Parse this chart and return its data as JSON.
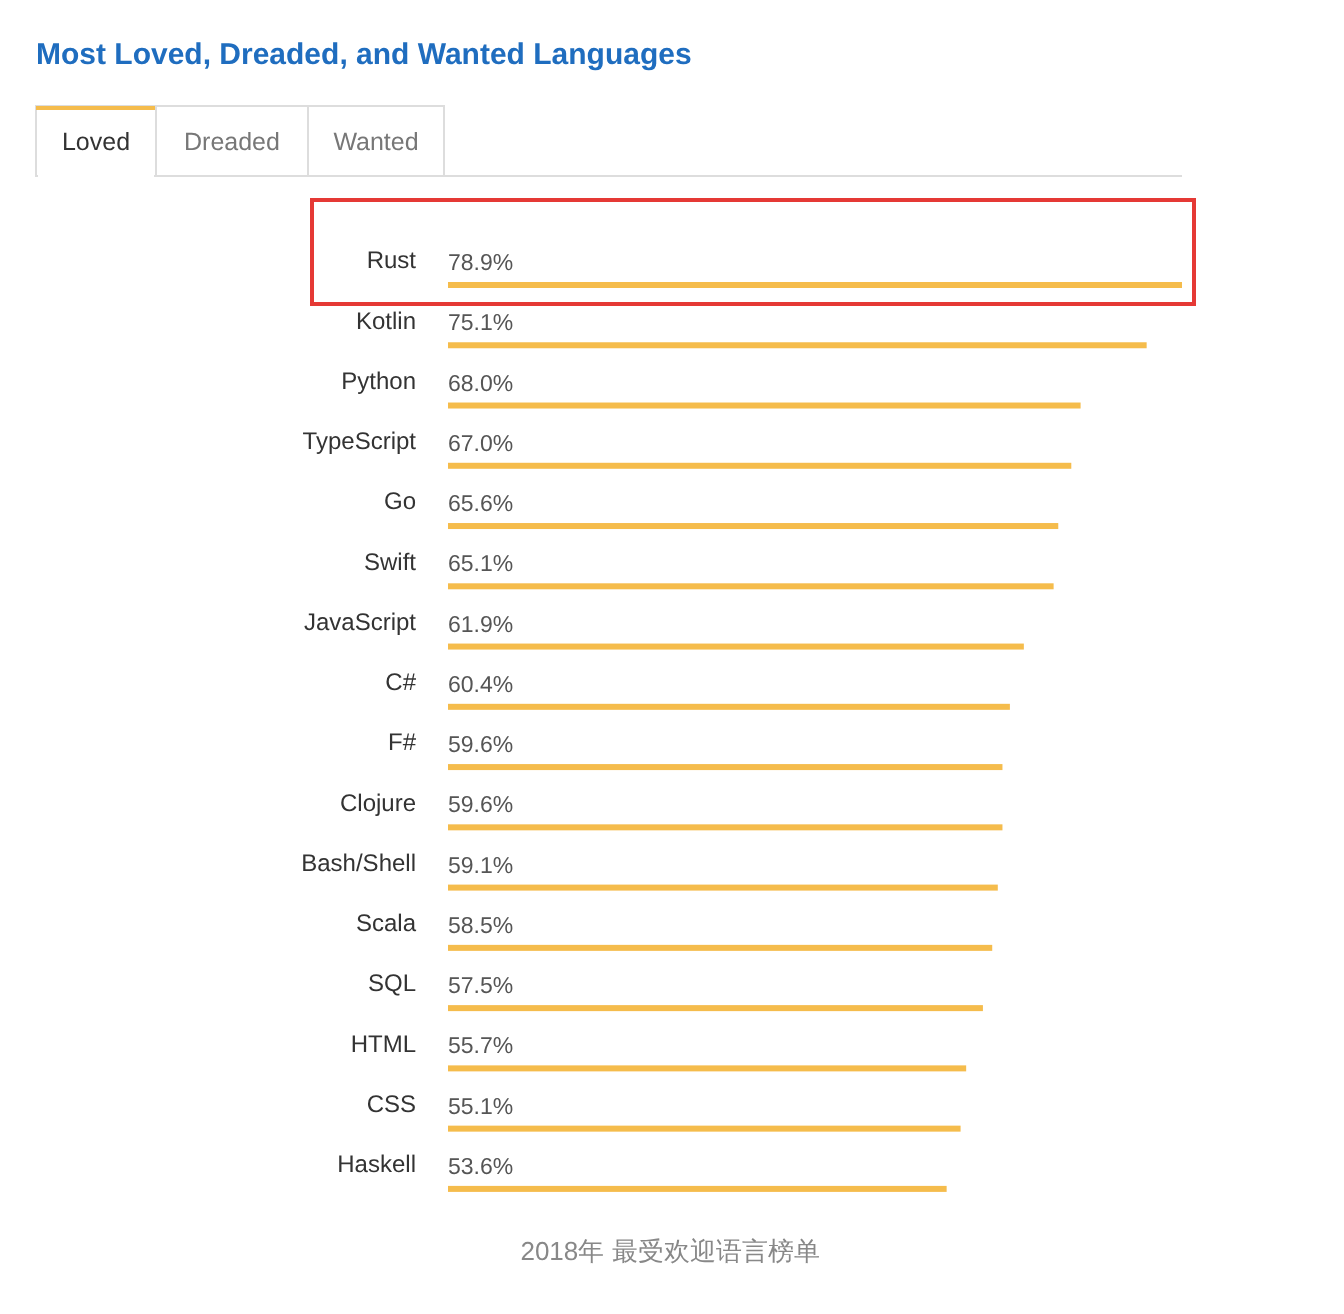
{
  "chart_data": {
    "type": "bar",
    "orientation": "horizontal",
    "title": "Most Loved, Dreaded, and Wanted Languages",
    "categories": [
      "Rust",
      "Kotlin",
      "Python",
      "TypeScript",
      "Go",
      "Swift",
      "JavaScript",
      "C#",
      "F#",
      "Clojure",
      "Bash/Shell",
      "Scala",
      "SQL",
      "HTML",
      "CSS",
      "Haskell"
    ],
    "values": [
      78.9,
      75.1,
      68.0,
      67.0,
      65.6,
      65.1,
      61.9,
      60.4,
      59.6,
      59.6,
      59.1,
      58.5,
      57.5,
      55.7,
      55.1,
      53.6
    ],
    "value_labels": [
      "78.9%",
      "75.1%",
      "68.0%",
      "67.0%",
      "65.6%",
      "65.1%",
      "61.9%",
      "60.4%",
      "59.6%",
      "59.6%",
      "59.1%",
      "58.5%",
      "57.5%",
      "55.7%",
      "55.1%",
      "53.6%"
    ],
    "color": "#f5bc4c",
    "annotations": [
      "Loved",
      "Dreaded",
      "Wanted",
      "2018年 最受欢迎语言榜单"
    ]
  }
}
